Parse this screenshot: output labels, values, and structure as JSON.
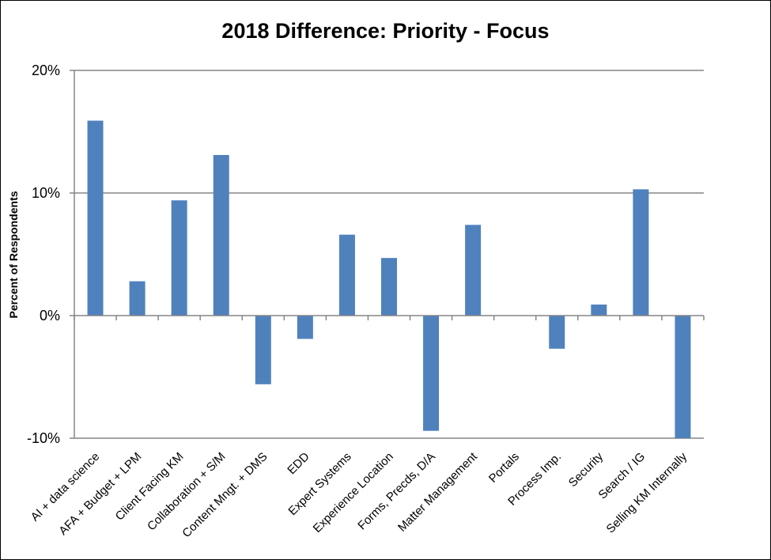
{
  "chart_data": {
    "type": "bar",
    "title": "2018 Difference: Priority - Focus",
    "ylabel": "Percent of Respondents",
    "xlabel": "",
    "ylim": [
      -10,
      20
    ],
    "yticks": [
      {
        "value": 20,
        "label": "20%"
      },
      {
        "value": 10,
        "label": "10%"
      },
      {
        "value": 0,
        "label": "0%"
      },
      {
        "value": -10,
        "label": "-10%"
      }
    ],
    "grid": true,
    "legend": "none",
    "categories": [
      "AI + data science",
      "AFA + Budget + LPM",
      "Client Facing KM",
      "Collaboration  + S/M",
      "Content Mngt. + DMS",
      "EDD",
      "Expert Systems",
      "Experience Location",
      "Forms, Precds, D/A",
      "Matter Management",
      "Portals",
      "Process Imp.",
      "Security",
      "Search / IG",
      "Selling KM Internally"
    ],
    "values": [
      15.9,
      2.8,
      9.4,
      13.1,
      -5.6,
      -1.9,
      6.6,
      4.7,
      -9.4,
      7.4,
      0,
      -2.7,
      0.9,
      10.3,
      -10.0
    ],
    "bar_color": "#4f81bd",
    "grid_color": "#868686"
  }
}
